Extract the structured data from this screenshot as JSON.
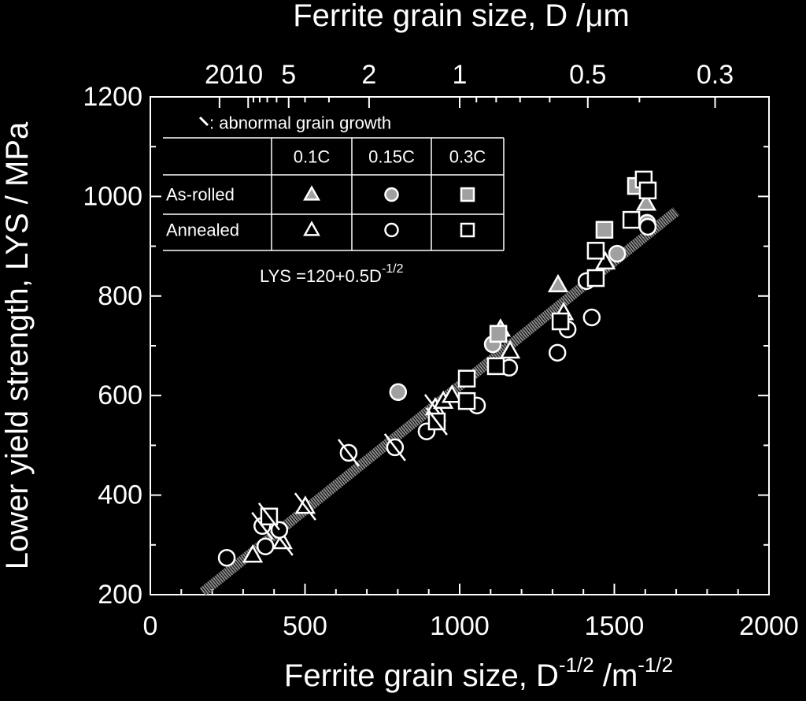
{
  "chart_data": {
    "type": "scatter",
    "top_label": "Ferrite grain size,  D /μm",
    "xlabel": [
      "Ferrite grain size,  D",
      "-1/2",
      " /m",
      "-1/2"
    ],
    "ylabel": "Lower yield strength,  LYS / MPa",
    "xlim": [
      0,
      2000
    ],
    "ylim": [
      200,
      1200
    ],
    "xticks": [
      0,
      500,
      1000,
      1500,
      2000
    ],
    "xminor": [
      100,
      200,
      300,
      400,
      600,
      700,
      800,
      900,
      1100,
      1200,
      1300,
      1400,
      1600,
      1700,
      1800,
      1900
    ],
    "yticks": [
      200,
      400,
      600,
      800,
      1000,
      1200
    ],
    "yminor": [
      300,
      500,
      700,
      900,
      1100
    ],
    "x2ticks": [
      {
        "value": 223.6,
        "label": "20"
      },
      {
        "value": 316.2,
        "label": "10"
      },
      {
        "value": 447.2,
        "label": "5"
      },
      {
        "value": 707.1,
        "label": "2"
      },
      {
        "value": 1000,
        "label": "1"
      },
      {
        "value": 1414.2,
        "label": "0.5"
      },
      {
        "value": 1825.7,
        "label": "0.3"
      }
    ],
    "x2minor": [
      333.3,
      353.6,
      378,
      408.2,
      500,
      577.4,
      1054.1,
      1118,
      1195.2,
      1291,
      1581.1
    ],
    "fit": {
      "label": "LYS =120+0.5D",
      "label_sup": "-1/2",
      "intercept": 120,
      "slope": 0.5,
      "xrange": [
        170,
        1700
      ],
      "color": "#8a8a8a"
    },
    "legend": {
      "note": ": abnormal grain growth",
      "columns": [
        "0.1C",
        "0.15C",
        "0.3C"
      ],
      "rows": [
        "As-rolled",
        "Annealed"
      ]
    },
    "series": [
      {
        "group": "As-rolled",
        "grade": "0.1C",
        "marker": "triangle",
        "color": "#a0a0a0",
        "x": [
          1318,
          1132,
          1603
        ],
        "values": [
          822,
          733,
          986
        ],
        "abnormal": [
          false,
          false,
          false
        ]
      },
      {
        "group": "As-rolled",
        "grade": "0.15C",
        "marker": "circle",
        "color": "#a0a0a0",
        "x": [
          801,
          1107,
          1509,
          1606
        ],
        "values": [
          607,
          703,
          885,
          947
        ],
        "abnormal": [
          false,
          false,
          false,
          false
        ]
      },
      {
        "group": "As-rolled",
        "grade": "0.3C",
        "marker": "square",
        "color": "#a0a0a0",
        "x": [
          1125,
          1468,
          1570
        ],
        "values": [
          724,
          933,
          1021
        ],
        "abnormal": [
          false,
          false,
          false
        ]
      },
      {
        "group": "Annealed",
        "grade": "0.1C",
        "marker": "triangle",
        "color": "#000000",
        "x": [
          331,
          427,
          501,
          921,
          947,
          975,
          1163,
          1336,
          1471
        ],
        "values": [
          279,
          306,
          377,
          575,
          588,
          600,
          689,
          766,
          868
        ],
        "abnormal": [
          false,
          true,
          true,
          true,
          false,
          false,
          false,
          false,
          false
        ]
      },
      {
        "group": "Annealed",
        "grade": "0.15C",
        "marker": "circle",
        "color": "#000000",
        "x": [
          247,
          372,
          362,
          417,
          641,
          791,
          893,
          1056,
          1160,
          1316,
          1349,
          1410,
          1427,
          1608
        ],
        "values": [
          274,
          297,
          338,
          330,
          485,
          496,
          528,
          580,
          656,
          686,
          733,
          830,
          757,
          939
        ],
        "abnormal": [
          false,
          false,
          true,
          false,
          true,
          true,
          false,
          false,
          false,
          false,
          false,
          false,
          false,
          false
        ]
      },
      {
        "group": "Annealed",
        "grade": "0.3C",
        "marker": "square",
        "color": "#000000",
        "x": [
          384,
          926,
          1023,
          1023,
          1117,
          1326,
          1440,
          1440,
          1555,
          1595,
          1608
        ],
        "values": [
          357,
          548,
          589,
          634,
          659,
          749,
          836,
          891,
          953,
          1034,
          1012
        ],
        "abnormal": [
          true,
          true,
          false,
          false,
          false,
          false,
          false,
          false,
          false,
          false,
          false
        ]
      }
    ]
  }
}
